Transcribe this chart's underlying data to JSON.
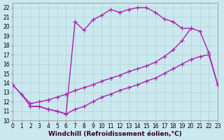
{
  "xlabel": "Windchill (Refroidissement éolien,°C)",
  "bg_color": "#cbe8ef",
  "grid_color": "#b0d0d8",
  "line_color": "#aa22aa",
  "xlim": [
    0,
    23
  ],
  "ylim": [
    10,
    22.5
  ],
  "xticks": [
    0,
    1,
    2,
    3,
    4,
    5,
    6,
    7,
    8,
    9,
    10,
    11,
    12,
    13,
    14,
    15,
    16,
    17,
    18,
    19,
    20,
    21,
    22,
    23
  ],
  "yticks": [
    10,
    11,
    12,
    13,
    14,
    15,
    16,
    17,
    18,
    19,
    20,
    21,
    22
  ],
  "curve1_x": [
    0,
    1,
    2,
    3,
    4,
    5,
    6,
    7,
    8,
    9,
    10,
    11,
    12,
    13,
    14,
    15,
    16,
    17,
    18,
    19,
    20
  ],
  "curve1_y": [
    13.8,
    12.8,
    11.5,
    11.5,
    11.2,
    11.0,
    10.7,
    20.5,
    19.6,
    20.7,
    21.2,
    21.8,
    21.5,
    21.8,
    22.0,
    22.0,
    21.5,
    20.8,
    20.5,
    19.8,
    19.8
  ],
  "curve2_x": [
    0,
    2,
    3,
    4,
    5,
    6,
    7,
    8,
    9,
    10,
    11,
    12,
    13,
    14,
    15,
    16,
    17,
    18,
    19,
    20,
    21,
    22,
    23
  ],
  "curve2_y": [
    13.8,
    11.8,
    12.0,
    12.2,
    12.5,
    12.8,
    13.2,
    13.5,
    13.8,
    14.2,
    14.5,
    14.8,
    15.2,
    15.5,
    15.8,
    16.2,
    16.8,
    17.5,
    18.5,
    19.8,
    19.5,
    17.2,
    13.8
  ],
  "curve3_x": [
    2,
    3,
    4,
    5,
    6,
    7,
    8,
    9,
    10,
    11,
    12,
    13,
    14,
    15,
    16,
    17,
    18,
    19,
    20,
    21,
    22,
    23
  ],
  "curve3_y": [
    11.5,
    11.5,
    11.2,
    11.0,
    10.7,
    11.2,
    11.5,
    12.0,
    12.5,
    12.8,
    13.2,
    13.5,
    13.8,
    14.2,
    14.5,
    15.0,
    15.5,
    16.0,
    16.5,
    16.8,
    17.0,
    13.8
  ],
  "marker_size": 4,
  "line_width": 1.0,
  "tick_fontsize": 5.5,
  "label_fontsize": 6.5
}
